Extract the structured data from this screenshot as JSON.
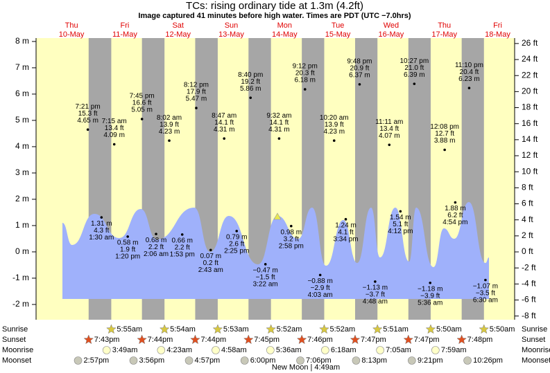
{
  "chart_data": {
    "type": "tide",
    "title": "TCs: rising  ordinary tide at 1.3m (4.2ft)",
    "subtitle": "Image captured 41 minutes before high water. Times are PDT (UTC −7.0hrs)",
    "ylim": [
      -2.58,
      8.13
    ],
    "yticks": [
      {
        "value": -2,
        "label": "-2 m"
      },
      {
        "value": -1,
        "label": "-1 m"
      },
      {
        "value": 0,
        "label": "0 m"
      },
      {
        "value": 1,
        "label": "1 m"
      },
      {
        "value": 2,
        "label": "2 m"
      },
      {
        "value": 3,
        "label": "3 m"
      },
      {
        "value": 4,
        "label": "4 m"
      },
      {
        "value": 5,
        "label": "5 m"
      },
      {
        "value": 6,
        "label": "6 m"
      },
      {
        "value": 7,
        "label": "7 m"
      },
      {
        "value": 8,
        "label": "8 m"
      }
    ],
    "y2lim": [
      -8.46,
      26.68
    ],
    "y2ticks": [
      {
        "value": -8,
        "label": "-8 ft"
      },
      {
        "value": -6,
        "label": "-6 ft"
      },
      {
        "value": -4,
        "label": "-4 ft"
      },
      {
        "value": -2,
        "label": "-2 ft"
      },
      {
        "value": 0,
        "label": "0 ft"
      },
      {
        "value": 2,
        "label": "2 ft"
      },
      {
        "value": 4,
        "label": "4 ft"
      },
      {
        "value": 6,
        "label": "6 ft"
      },
      {
        "value": 8,
        "label": "8 ft"
      },
      {
        "value": 10,
        "label": "10 ft"
      },
      {
        "value": 12,
        "label": "12 ft"
      },
      {
        "value": 14,
        "label": "14 ft"
      },
      {
        "value": 16,
        "label": "16 ft"
      },
      {
        "value": 18,
        "label": "18 ft"
      },
      {
        "value": 20,
        "label": "20 ft"
      },
      {
        "value": 22,
        "label": "22 ft"
      },
      {
        "value": 24,
        "label": "24 ft"
      },
      {
        "value": 26,
        "label": "26 ft"
      }
    ],
    "row_labels": {
      "sunrise": "Sunrise",
      "sunset": "Sunset",
      "moonrise": "Moonrise",
      "moonset": "Moonset"
    },
    "moon_phase": "New Moon | 4:49am",
    "days": [
      {
        "weekday": "Thu",
        "date": "10-May",
        "sunset": "7:43pm",
        "moonset": "2:57pm",
        "extremes": [
          {
            "time": "7:21 pm",
            "m": 4.65,
            "m_label": "4.65 m",
            "ft_label": "15.3 ft"
          }
        ]
      },
      {
        "weekday": "Fri",
        "date": "11-May",
        "sunrise": "5:55am",
        "sunset": "7:44pm",
        "moonrise": "3:49am",
        "moonset": "3:56pm",
        "extremes": [
          {
            "time": "1:30 am",
            "m": 1.31,
            "m_label": "1.31 m",
            "ft_label": "4.3 ft"
          },
          {
            "time": "7:15 am",
            "m": 4.09,
            "m_label": "4.09 m",
            "ft_label": "13.4 ft"
          },
          {
            "time": "1:20 pm",
            "m": 0.58,
            "m_label": "0.58 m",
            "ft_label": "1.9 ft"
          },
          {
            "time": "7:45 pm",
            "m": 5.05,
            "m_label": "5.05 m",
            "ft_label": "16.6 ft"
          }
        ]
      },
      {
        "weekday": "Sat",
        "date": "12-May",
        "sunrise": "5:54am",
        "sunset": "7:44pm",
        "moonrise": "4:23am",
        "moonset": "4:57pm",
        "extremes": [
          {
            "time": "2:06 am",
            "m": 0.68,
            "m_label": "0.68 m",
            "ft_label": "2.2 ft"
          },
          {
            "time": "8:02 am",
            "m": 4.23,
            "m_label": "4.23 m",
            "ft_label": "13.9 ft"
          },
          {
            "time": "1:53 pm",
            "m": 0.66,
            "m_label": "0.66 m",
            "ft_label": "2.2 ft"
          },
          {
            "time": "8:12 pm",
            "m": 5.47,
            "m_label": "5.47 m",
            "ft_label": "17.9 ft"
          }
        ]
      },
      {
        "weekday": "Sun",
        "date": "13-May",
        "sunrise": "5:53am",
        "sunset": "7:45pm",
        "moonrise": "4:58am",
        "moonset": "6:00pm",
        "extremes": [
          {
            "time": "2:43 am",
            "m": 0.07,
            "m_label": "0.07 m",
            "ft_label": "0.2 ft"
          },
          {
            "time": "8:47 am",
            "m": 4.31,
            "m_label": "4.31 m",
            "ft_label": "14.1 ft"
          },
          {
            "time": "2:25 pm",
            "m": 0.79,
            "m_label": "0.79 m",
            "ft_label": "2.6 ft"
          },
          {
            "time": "8:40 pm",
            "m": 5.86,
            "m_label": "5.86 m",
            "ft_label": "19.2 ft"
          }
        ]
      },
      {
        "weekday": "Mon",
        "date": "14-May",
        "sunrise": "5:52am",
        "sunset": "7:46pm",
        "moonrise": "5:36am",
        "moonset": "7:06pm",
        "extremes": [
          {
            "time": "3:22 am",
            "m": -0.47,
            "m_label": "−0.47 m",
            "ft_label": "−1.5 ft"
          },
          {
            "time": "9:32 am",
            "m": 4.31,
            "m_label": "4.31 m",
            "ft_label": "14.1 ft"
          },
          {
            "time": "2:58 pm",
            "m": 0.98,
            "m_label": "0.98 m",
            "ft_label": "3.2 ft"
          },
          {
            "time": "9:12 pm",
            "m": 6.18,
            "m_label": "6.18 m",
            "ft_label": "20.3 ft"
          }
        ]
      },
      {
        "weekday": "Tue",
        "date": "15-May",
        "sunrise": "5:52am",
        "sunset": "7:47pm",
        "moonrise": "6:18am",
        "moonset": "8:13pm",
        "extremes": [
          {
            "time": "4:03 am",
            "m": -0.88,
            "m_label": "−0.88 m",
            "ft_label": "−2.9 ft"
          },
          {
            "time": "10:20 am",
            "m": 4.23,
            "m_label": "4.23 m",
            "ft_label": "13.9 ft"
          },
          {
            "time": "3:34 pm",
            "m": 1.24,
            "m_label": "1.24 m",
            "ft_label": "4.1 ft"
          },
          {
            "time": "9:48 pm",
            "m": 6.37,
            "m_label": "6.37 m",
            "ft_label": "20.9 ft"
          }
        ]
      },
      {
        "weekday": "Wed",
        "date": "16-May",
        "sunrise": "5:51am",
        "sunset": "7:47pm",
        "moonrise": "7:05am",
        "moonset": "9:21pm",
        "extremes": [
          {
            "time": "4:48 am",
            "m": -1.13,
            "m_label": "−1.13 m",
            "ft_label": "−3.7 ft"
          },
          {
            "time": "11:11 am",
            "m": 4.07,
            "m_label": "4.07 m",
            "ft_label": "13.4 ft"
          },
          {
            "time": "4:12 pm",
            "m": 1.54,
            "m_label": "1.54 m",
            "ft_label": "5.1 ft"
          },
          {
            "time": "10:27 pm",
            "m": 6.39,
            "m_label": "6.39 m",
            "ft_label": "21.0 ft"
          }
        ]
      },
      {
        "weekday": "Thu",
        "date": "17-May",
        "sunrise": "5:50am",
        "sunset": "7:48pm",
        "moonrise": "7:59am",
        "moonset": "10:26pm",
        "extremes": [
          {
            "time": "5:36 am",
            "m": -1.18,
            "m_label": "−1.18 m",
            "ft_label": "−3.9 ft"
          },
          {
            "time": "12:08 pm",
            "m": 3.88,
            "m_label": "3.88 m",
            "ft_label": "12.7 ft"
          },
          {
            "time": "4:54 pm",
            "m": 1.88,
            "m_label": "1.88 m",
            "ft_label": "6.2 ft"
          },
          {
            "time": "11:10 pm",
            "m": 6.23,
            "m_label": "6.23 m",
            "ft_label": "20.4 ft"
          }
        ]
      },
      {
        "weekday": "Fri",
        "date": "18-May",
        "sunrise": "5:50am",
        "extremes": [
          {
            "time": "6:30 am",
            "m": -1.07,
            "m_label": "−1.07 m",
            "ft_label": "−3.5 ft"
          }
        ]
      }
    ]
  }
}
